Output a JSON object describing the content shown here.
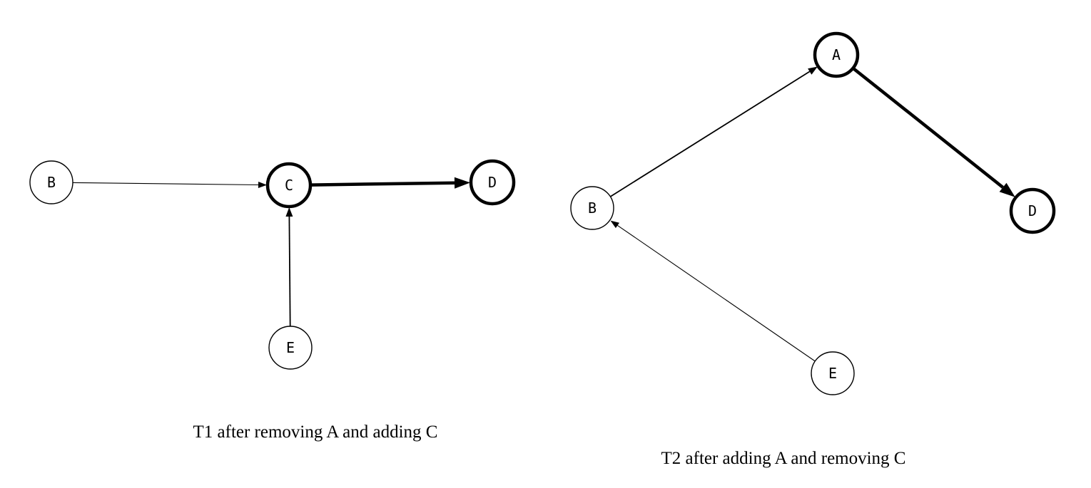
{
  "colors": {
    "background": "#ffffff",
    "stroke": "#000000",
    "text": "#000000"
  },
  "diagrams": [
    {
      "caption": "T1 after removing A and adding C",
      "nodes": [
        {
          "id": "B",
          "label": "B",
          "emphasis": "normal"
        },
        {
          "id": "C",
          "label": "C",
          "emphasis": "bold"
        },
        {
          "id": "D",
          "label": "D",
          "emphasis": "bold"
        },
        {
          "id": "E",
          "label": "E",
          "emphasis": "normal"
        }
      ],
      "edges": [
        {
          "from": "B",
          "to": "C",
          "weight": "thin"
        },
        {
          "from": "E",
          "to": "C",
          "weight": "normal"
        },
        {
          "from": "C",
          "to": "D",
          "weight": "bold"
        }
      ]
    },
    {
      "caption": "T2 after adding A and removing C",
      "nodes": [
        {
          "id": "A",
          "label": "A",
          "emphasis": "bold"
        },
        {
          "id": "B",
          "label": "B",
          "emphasis": "normal"
        },
        {
          "id": "D",
          "label": "D",
          "emphasis": "bold"
        },
        {
          "id": "E",
          "label": "E",
          "emphasis": "normal"
        }
      ],
      "edges": [
        {
          "from": "B",
          "to": "A",
          "weight": "normal"
        },
        {
          "from": "E",
          "to": "B",
          "weight": "thin"
        },
        {
          "from": "A",
          "to": "D",
          "weight": "bold"
        }
      ]
    }
  ]
}
